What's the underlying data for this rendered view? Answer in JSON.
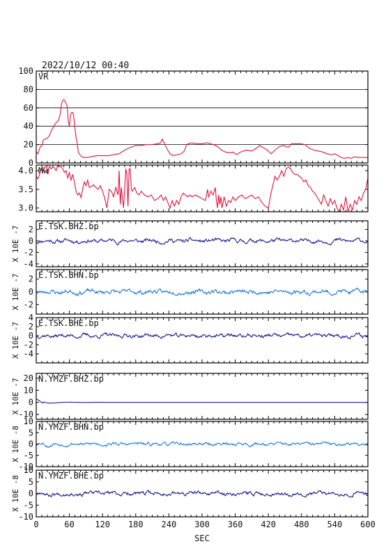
{
  "chart_data": {
    "type": "line",
    "title": "2022/10/12 00:40",
    "xlabel": "SEC",
    "xlim": [
      0,
      600
    ],
    "xticks": [
      "0",
      "60",
      "120",
      "180",
      "240",
      "300",
      "360",
      "420",
      "480",
      "540",
      "600"
    ],
    "colors": {
      "red": "#dc143c",
      "navy": "#1a1a8c",
      "blue": "#1e78d2",
      "grid": "#000000"
    },
    "panels": [
      {
        "label": "VR",
        "ylim": [
          0,
          100
        ],
        "yticks": [
          "0",
          "20",
          "40",
          "60",
          "80",
          "100"
        ],
        "grid": true,
        "color": "red",
        "points": [
          [
            0,
            12
          ],
          [
            3,
            10
          ],
          [
            5,
            14
          ],
          [
            8,
            18
          ],
          [
            10,
            19
          ],
          [
            13,
            25
          ],
          [
            16,
            26
          ],
          [
            20,
            27
          ],
          [
            24,
            30
          ],
          [
            28,
            36
          ],
          [
            32,
            40
          ],
          [
            36,
            44
          ],
          [
            40,
            46
          ],
          [
            43,
            52
          ],
          [
            46,
            65
          ],
          [
            48,
            68
          ],
          [
            50,
            69
          ],
          [
            53,
            66
          ],
          [
            56,
            62
          ],
          [
            58,
            45
          ],
          [
            60,
            40
          ],
          [
            62,
            52
          ],
          [
            64,
            55
          ],
          [
            66,
            55
          ],
          [
            68,
            50
          ],
          [
            70,
            38
          ],
          [
            72,
            28
          ],
          [
            74,
            22
          ],
          [
            76,
            12
          ],
          [
            80,
            8
          ],
          [
            85,
            6
          ],
          [
            92,
            6
          ],
          [
            100,
            7
          ],
          [
            110,
            8
          ],
          [
            120,
            8
          ],
          [
            130,
            8
          ],
          [
            140,
            9
          ],
          [
            150,
            10
          ],
          [
            160,
            14
          ],
          [
            170,
            17
          ],
          [
            180,
            19
          ],
          [
            190,
            19
          ],
          [
            200,
            20
          ],
          [
            210,
            20
          ],
          [
            220,
            21
          ],
          [
            225,
            22
          ],
          [
            228,
            26
          ],
          [
            232,
            21
          ],
          [
            236,
            16
          ],
          [
            242,
            10
          ],
          [
            248,
            8
          ],
          [
            256,
            9
          ],
          [
            262,
            10
          ],
          [
            268,
            13
          ],
          [
            272,
            20
          ],
          [
            280,
            22
          ],
          [
            290,
            21
          ],
          [
            300,
            21
          ],
          [
            310,
            22
          ],
          [
            320,
            20
          ],
          [
            328,
            18
          ],
          [
            335,
            14
          ],
          [
            342,
            12
          ],
          [
            350,
            11
          ],
          [
            356,
            12
          ],
          [
            362,
            9
          ],
          [
            370,
            12
          ],
          [
            380,
            14
          ],
          [
            390,
            13
          ],
          [
            398,
            16
          ],
          [
            404,
            19
          ],
          [
            410,
            17
          ],
          [
            418,
            14
          ],
          [
            425,
            10
          ],
          [
            432,
            14
          ],
          [
            440,
            18
          ],
          [
            448,
            19
          ],
          [
            456,
            17
          ],
          [
            462,
            21
          ],
          [
            470,
            21
          ],
          [
            478,
            21
          ],
          [
            486,
            20
          ],
          [
            494,
            16
          ],
          [
            502,
            14
          ],
          [
            510,
            13
          ],
          [
            518,
            12
          ],
          [
            526,
            10
          ],
          [
            534,
            9
          ],
          [
            540,
            10
          ],
          [
            546,
            8
          ],
          [
            552,
            6
          ],
          [
            558,
            5
          ],
          [
            564,
            6
          ],
          [
            570,
            5
          ],
          [
            576,
            7
          ],
          [
            582,
            6
          ],
          [
            590,
            6
          ],
          [
            600,
            6
          ]
        ]
      },
      {
        "label": "Mw",
        "ylim": [
          2.9,
          4.15
        ],
        "yticks": [
          "3.0",
          "3.5",
          "4.0"
        ],
        "grid": false,
        "color": "red",
        "points": [
          [
            0,
            3.85
          ],
          [
            3,
            3.78
          ],
          [
            6,
            3.9
          ],
          [
            9,
            4.05
          ],
          [
            12,
            3.95
          ],
          [
            15,
            4.1
          ],
          [
            18,
            4.1
          ],
          [
            21,
            3.9
          ],
          [
            24,
            4.12
          ],
          [
            27,
            4.05
          ],
          [
            30,
            4.1
          ],
          [
            33,
            4.08
          ],
          [
            36,
            4.0
          ],
          [
            39,
            4.15
          ],
          [
            42,
            4.1
          ],
          [
            45,
            4.12
          ],
          [
            48,
            4.05
          ],
          [
            51,
            3.95
          ],
          [
            54,
            4.0
          ],
          [
            57,
            3.8
          ],
          [
            60,
            3.95
          ],
          [
            63,
            3.75
          ],
          [
            66,
            3.9
          ],
          [
            69,
            3.7
          ],
          [
            72,
            3.45
          ],
          [
            75,
            3.35
          ],
          [
            78,
            3.4
          ],
          [
            81,
            3.28
          ],
          [
            84,
            3.5
          ],
          [
            87,
            3.7
          ],
          [
            90,
            3.6
          ],
          [
            93,
            3.75
          ],
          [
            96,
            3.55
          ],
          [
            100,
            3.58
          ],
          [
            104,
            3.62
          ],
          [
            108,
            3.55
          ],
          [
            112,
            3.5
          ],
          [
            116,
            3.6
          ],
          [
            120,
            3.45
          ],
          [
            124,
            3.25
          ],
          [
            128,
            3.0
          ],
          [
            132,
            3.5
          ],
          [
            136,
            3.45
          ],
          [
            140,
            3.3
          ],
          [
            144,
            3.55
          ],
          [
            148,
            3.35
          ],
          [
            150,
            4.0
          ],
          [
            152,
            3.1
          ],
          [
            154,
            3.55
          ],
          [
            156,
            3.25
          ],
          [
            158,
            3.0
          ],
          [
            160,
            3.5
          ],
          [
            162,
            4.05
          ],
          [
            164,
            3.9
          ],
          [
            166,
            3.05
          ],
          [
            168,
            4.05
          ],
          [
            170,
            4.05
          ],
          [
            172,
            3.5
          ],
          [
            174,
            3.45
          ],
          [
            178,
            3.55
          ],
          [
            182,
            3.4
          ],
          [
            186,
            3.35
          ],
          [
            190,
            3.45
          ],
          [
            196,
            3.35
          ],
          [
            202,
            3.3
          ],
          [
            208,
            3.35
          ],
          [
            214,
            3.2
          ],
          [
            220,
            3.25
          ],
          [
            226,
            3.35
          ],
          [
            230,
            3.2
          ],
          [
            234,
            3.3
          ],
          [
            238,
            3.15
          ],
          [
            242,
            3.0
          ],
          [
            246,
            3.2
          ],
          [
            250,
            3.05
          ],
          [
            254,
            3.2
          ],
          [
            258,
            3.1
          ],
          [
            262,
            3.3
          ],
          [
            266,
            3.4
          ],
          [
            270,
            3.35
          ],
          [
            274,
            3.3
          ],
          [
            278,
            3.35
          ],
          [
            282,
            3.3
          ],
          [
            288,
            3.35
          ],
          [
            294,
            3.3
          ],
          [
            300,
            3.25
          ],
          [
            306,
            3.2
          ],
          [
            310,
            3.5
          ],
          [
            312,
            3.3
          ],
          [
            316,
            3.45
          ],
          [
            320,
            3.35
          ],
          [
            324,
            3.55
          ],
          [
            326,
            3.2
          ],
          [
            328,
            3.0
          ],
          [
            330,
            3.35
          ],
          [
            332,
            3.1
          ],
          [
            334,
            3.3
          ],
          [
            336,
            3.0
          ],
          [
            340,
            3.3
          ],
          [
            344,
            3.05
          ],
          [
            348,
            3.2
          ],
          [
            352,
            3.15
          ],
          [
            356,
            3.3
          ],
          [
            360,
            3.2
          ],
          [
            366,
            3.3
          ],
          [
            372,
            3.35
          ],
          [
            378,
            3.25
          ],
          [
            384,
            3.3
          ],
          [
            390,
            3.35
          ],
          [
            396,
            3.25
          ],
          [
            402,
            3.3
          ],
          [
            408,
            3.15
          ],
          [
            414,
            3.05
          ],
          [
            420,
            3.0
          ],
          [
            424,
            3.35
          ],
          [
            428,
            3.6
          ],
          [
            432,
            3.85
          ],
          [
            436,
            3.75
          ],
          [
            440,
            3.85
          ],
          [
            444,
            4.0
          ],
          [
            448,
            3.85
          ],
          [
            452,
            4.05
          ],
          [
            456,
            4.1
          ],
          [
            460,
            4.05
          ],
          [
            464,
            3.95
          ],
          [
            468,
            3.9
          ],
          [
            472,
            3.9
          ],
          [
            476,
            3.85
          ],
          [
            480,
            3.8
          ],
          [
            484,
            3.7
          ],
          [
            488,
            3.75
          ],
          [
            492,
            3.6
          ],
          [
            496,
            3.55
          ],
          [
            500,
            3.45
          ],
          [
            504,
            3.4
          ],
          [
            508,
            3.3
          ],
          [
            512,
            3.2
          ],
          [
            516,
            3.1
          ],
          [
            520,
            3.35
          ],
          [
            524,
            3.2
          ],
          [
            528,
            3.05
          ],
          [
            532,
            3.25
          ],
          [
            536,
            3.1
          ],
          [
            540,
            3.2
          ],
          [
            544,
            3.0
          ],
          [
            548,
            2.9
          ],
          [
            552,
            3.1
          ],
          [
            556,
            2.95
          ],
          [
            560,
            3.3
          ],
          [
            564,
            2.9
          ],
          [
            568,
            3.1
          ],
          [
            572,
            2.95
          ],
          [
            576,
            3.2
          ],
          [
            580,
            3.1
          ],
          [
            584,
            3.3
          ],
          [
            588,
            3.2
          ],
          [
            592,
            3.4
          ],
          [
            596,
            3.5
          ],
          [
            600,
            3.8
          ]
        ]
      },
      {
        "label": "E.TSK.BHZ.bp",
        "unit": "X 10E -7",
        "ylim": [
          -4.5,
          3.5
        ],
        "yticks": [
          "-4",
          "-2",
          "0",
          "2"
        ],
        "grid": false,
        "color": "navy",
        "amp": 0.25,
        "seed": 11
      },
      {
        "label": "E.TSK.BHN.bp",
        "unit": "X 10E -7",
        "ylim": [
          -3.5,
          3.5
        ],
        "yticks": [
          "-2",
          "0",
          "2"
        ],
        "grid": false,
        "color": "blue",
        "amp": 0.25,
        "seed": 23
      },
      {
        "label": "E.TSK.BHE.bp",
        "unit": "X 10E -7",
        "ylim": [
          -6,
          4
        ],
        "yticks": [
          "-4",
          "-2",
          "0",
          "2",
          "4"
        ],
        "grid": false,
        "color": "navy",
        "amp": 0.3,
        "seed": 37
      },
      {
        "label": "N.YMZF.BHZ.bp",
        "unit": "X 10E -7",
        "ylim": [
          -14,
          24
        ],
        "yticks": [
          "-10",
          "0",
          "10",
          "20"
        ],
        "grid": false,
        "color": "navy",
        "amp": 0,
        "trace_end": 130,
        "seed": 41
      },
      {
        "label": "N.YMZF.BHN.bp",
        "unit": "X 10E -8",
        "ylim": [
          -10,
          10
        ],
        "yticks": [
          "-10",
          "-5",
          "0",
          "5",
          "10"
        ],
        "grid": false,
        "color": "blue",
        "amp": 0.5,
        "seed": 53
      },
      {
        "label": "N.YMZF.BHE.bp",
        "unit": "X 10E -8",
        "ylim": [
          -10,
          10
        ],
        "yticks": [
          "-10",
          "-5",
          "0",
          "5",
          "10"
        ],
        "grid": false,
        "color": "navy",
        "amp": 0.6,
        "seed": 67
      }
    ]
  }
}
